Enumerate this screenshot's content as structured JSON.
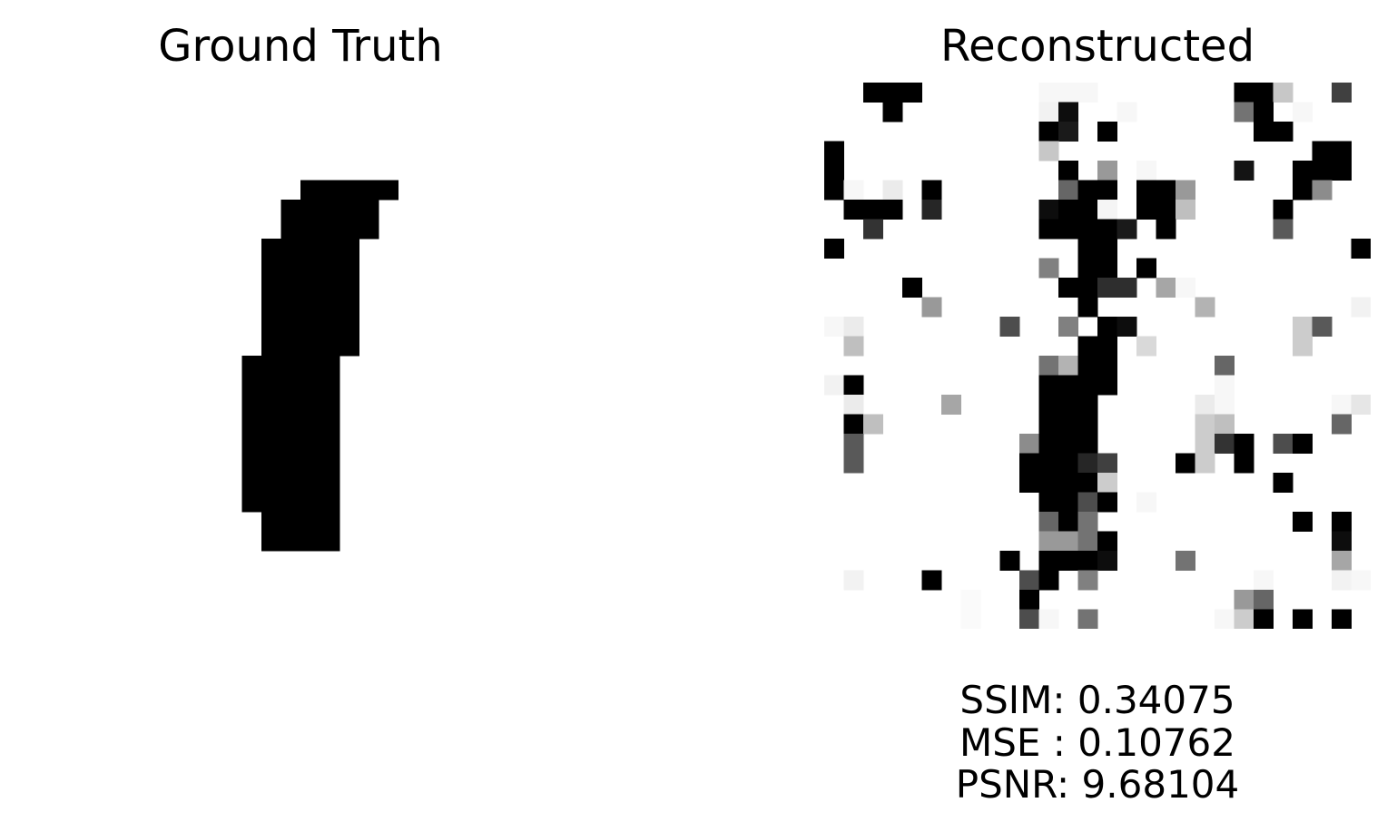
{
  "panels": {
    "left": {
      "title": "Ground Truth"
    },
    "right": {
      "title": "Reconstructed"
    }
  },
  "metrics": {
    "ssim": "SSIM: 0.34075",
    "mse": "MSE : 0.10762",
    "psnr": "PSNR: 9.68104"
  },
  "images": {
    "size": 28,
    "ground_truth_dark_cells": [
      [
        5,
        14,
        18
      ],
      [
        6,
        13,
        17
      ],
      [
        7,
        13,
        17
      ],
      [
        8,
        12,
        16
      ],
      [
        9,
        12,
        16
      ],
      [
        10,
        12,
        16
      ],
      [
        11,
        12,
        16
      ],
      [
        12,
        12,
        16
      ],
      [
        13,
        12,
        16
      ],
      [
        14,
        11,
        15
      ],
      [
        15,
        11,
        15
      ],
      [
        16,
        11,
        15
      ],
      [
        17,
        11,
        15
      ],
      [
        18,
        11,
        15
      ],
      [
        19,
        11,
        15
      ],
      [
        20,
        11,
        15
      ],
      [
        21,
        11,
        15
      ],
      [
        22,
        12,
        15
      ],
      [
        23,
        12,
        15
      ]
    ],
    "reconstructed_cells": [
      [
        0,
        2,
        0
      ],
      [
        0,
        3,
        0
      ],
      [
        0,
        4,
        0
      ],
      [
        0,
        11,
        0.97
      ],
      [
        0,
        12,
        0.97
      ],
      [
        0,
        13,
        0.97
      ],
      [
        0,
        21,
        0
      ],
      [
        0,
        22,
        0
      ],
      [
        0,
        23,
        0.78
      ],
      [
        0,
        26,
        0.25
      ],
      [
        1,
        3,
        0
      ],
      [
        1,
        11,
        0.95
      ],
      [
        1,
        12,
        0.05
      ],
      [
        1,
        15,
        0.97
      ],
      [
        1,
        21,
        0.45
      ],
      [
        1,
        22,
        0
      ],
      [
        1,
        24,
        0.97
      ],
      [
        2,
        11,
        0
      ],
      [
        2,
        12,
        0.1
      ],
      [
        2,
        14,
        0
      ],
      [
        2,
        22,
        0
      ],
      [
        2,
        23,
        0
      ],
      [
        3,
        0,
        0
      ],
      [
        3,
        11,
        0.78
      ],
      [
        3,
        25,
        0
      ],
      [
        3,
        26,
        0
      ],
      [
        4,
        0,
        0
      ],
      [
        4,
        12,
        0
      ],
      [
        4,
        14,
        0.6
      ],
      [
        4,
        16,
        0.97
      ],
      [
        4,
        21,
        0.08
      ],
      [
        4,
        24,
        0
      ],
      [
        4,
        25,
        0
      ],
      [
        4,
        26,
        0
      ],
      [
        5,
        0,
        0
      ],
      [
        5,
        1,
        0.97
      ],
      [
        5,
        3,
        0.92
      ],
      [
        5,
        5,
        0
      ],
      [
        5,
        12,
        0.4
      ],
      [
        5,
        13,
        0
      ],
      [
        5,
        14,
        0
      ],
      [
        5,
        16,
        0
      ],
      [
        5,
        17,
        0
      ],
      [
        5,
        18,
        0.6
      ],
      [
        5,
        24,
        0
      ],
      [
        5,
        25,
        0.55
      ],
      [
        6,
        1,
        0
      ],
      [
        6,
        2,
        0
      ],
      [
        6,
        3,
        0
      ],
      [
        6,
        5,
        0.15
      ],
      [
        6,
        11,
        0.05
      ],
      [
        6,
        12,
        0
      ],
      [
        6,
        13,
        0
      ],
      [
        6,
        14,
        0.96
      ],
      [
        6,
        16,
        0
      ],
      [
        6,
        17,
        0
      ],
      [
        6,
        18,
        0.75
      ],
      [
        6,
        23,
        0
      ],
      [
        7,
        2,
        0.2
      ],
      [
        7,
        11,
        0
      ],
      [
        7,
        12,
        0
      ],
      [
        7,
        13,
        0
      ],
      [
        7,
        14,
        0
      ],
      [
        7,
        15,
        0.1
      ],
      [
        7,
        17,
        0
      ],
      [
        7,
        23,
        0.35
      ],
      [
        8,
        0,
        0
      ],
      [
        8,
        13,
        0
      ],
      [
        8,
        14,
        0
      ],
      [
        8,
        27,
        0
      ],
      [
        9,
        11,
        0.5
      ],
      [
        9,
        13,
        0
      ],
      [
        9,
        14,
        0
      ],
      [
        9,
        16,
        0
      ],
      [
        10,
        4,
        0
      ],
      [
        10,
        12,
        0
      ],
      [
        10,
        13,
        0
      ],
      [
        10,
        14,
        0.18
      ],
      [
        10,
        15,
        0.18
      ],
      [
        10,
        17,
        0.65
      ],
      [
        10,
        18,
        0.97
      ],
      [
        11,
        5,
        0.6
      ],
      [
        11,
        13,
        0
      ],
      [
        11,
        19,
        0.7
      ],
      [
        11,
        27,
        0.95
      ],
      [
        12,
        0,
        0.97
      ],
      [
        12,
        1,
        0.92
      ],
      [
        12,
        9,
        0.3
      ],
      [
        12,
        12,
        0.5
      ],
      [
        12,
        14,
        0
      ],
      [
        12,
        15,
        0.05
      ],
      [
        12,
        24,
        0.8
      ],
      [
        12,
        25,
        0.35
      ],
      [
        13,
        1,
        0.75
      ],
      [
        13,
        13,
        0
      ],
      [
        13,
        14,
        0
      ],
      [
        13,
        16,
        0.85
      ],
      [
        13,
        24,
        0.8
      ],
      [
        14,
        11,
        0.45
      ],
      [
        14,
        12,
        0.7
      ],
      [
        14,
        13,
        0
      ],
      [
        14,
        14,
        0
      ],
      [
        14,
        20,
        0.4
      ],
      [
        15,
        0,
        0.95
      ],
      [
        15,
        1,
        0
      ],
      [
        15,
        11,
        0
      ],
      [
        15,
        12,
        0
      ],
      [
        15,
        13,
        0
      ],
      [
        15,
        14,
        0
      ],
      [
        15,
        20,
        0.97
      ],
      [
        16,
        1,
        0.92
      ],
      [
        16,
        6,
        0.65
      ],
      [
        16,
        11,
        0
      ],
      [
        16,
        12,
        0
      ],
      [
        16,
        13,
        0
      ],
      [
        16,
        19,
        0.92
      ],
      [
        16,
        20,
        0.97
      ],
      [
        16,
        26,
        0.97
      ],
      [
        16,
        27,
        0.9
      ],
      [
        17,
        1,
        0
      ],
      [
        17,
        2,
        0.75
      ],
      [
        17,
        11,
        0
      ],
      [
        17,
        12,
        0
      ],
      [
        17,
        13,
        0
      ],
      [
        17,
        19,
        0.8
      ],
      [
        17,
        20,
        0.75
      ],
      [
        17,
        26,
        0.4
      ],
      [
        18,
        1,
        0.35
      ],
      [
        18,
        10,
        0.55
      ],
      [
        18,
        11,
        0
      ],
      [
        18,
        12,
        0
      ],
      [
        18,
        13,
        0
      ],
      [
        18,
        19,
        0.8
      ],
      [
        18,
        20,
        0.2
      ],
      [
        18,
        21,
        0
      ],
      [
        18,
        23,
        0.3
      ],
      [
        18,
        24,
        0
      ],
      [
        19,
        1,
        0.35
      ],
      [
        19,
        10,
        0
      ],
      [
        19,
        11,
        0
      ],
      [
        19,
        12,
        0
      ],
      [
        19,
        13,
        0.15
      ],
      [
        19,
        14,
        0.25
      ],
      [
        19,
        18,
        0
      ],
      [
        19,
        19,
        0.8
      ],
      [
        19,
        21,
        0
      ],
      [
        20,
        10,
        0
      ],
      [
        20,
        11,
        0
      ],
      [
        20,
        12,
        0
      ],
      [
        20,
        13,
        0
      ],
      [
        20,
        14,
        0.8
      ],
      [
        20,
        23,
        0
      ],
      [
        21,
        11,
        0
      ],
      [
        21,
        12,
        0
      ],
      [
        21,
        13,
        0.3
      ],
      [
        21,
        14,
        0
      ],
      [
        21,
        16,
        0.97
      ],
      [
        22,
        11,
        0.4
      ],
      [
        22,
        12,
        0
      ],
      [
        22,
        13,
        0.45
      ],
      [
        22,
        24,
        0
      ],
      [
        22,
        26,
        0
      ],
      [
        23,
        11,
        0.6
      ],
      [
        23,
        12,
        0.6
      ],
      [
        23,
        13,
        0.45
      ],
      [
        23,
        14,
        0
      ],
      [
        23,
        26,
        0.05
      ],
      [
        24,
        9,
        0
      ],
      [
        24,
        11,
        0
      ],
      [
        24,
        12,
        0
      ],
      [
        24,
        13,
        0
      ],
      [
        24,
        14,
        0.05
      ],
      [
        24,
        18,
        0.45
      ],
      [
        24,
        26,
        0.65
      ],
      [
        25,
        1,
        0.95
      ],
      [
        25,
        5,
        0
      ],
      [
        25,
        10,
        0.3
      ],
      [
        25,
        11,
        0
      ],
      [
        25,
        13,
        0.5
      ],
      [
        25,
        22,
        0.97
      ],
      [
        25,
        26,
        0.95
      ],
      [
        25,
        27,
        0.97
      ],
      [
        26,
        7,
        0.98
      ],
      [
        26,
        10,
        0
      ],
      [
        26,
        21,
        0.6
      ],
      [
        26,
        22,
        0.4
      ],
      [
        27,
        7,
        0.98
      ],
      [
        27,
        10,
        0.3
      ],
      [
        27,
        11,
        0.97
      ],
      [
        27,
        13,
        0.45
      ],
      [
        27,
        20,
        0.97
      ],
      [
        27,
        21,
        0.8
      ],
      [
        27,
        22,
        0
      ],
      [
        27,
        24,
        0
      ],
      [
        27,
        26,
        0
      ]
    ]
  }
}
